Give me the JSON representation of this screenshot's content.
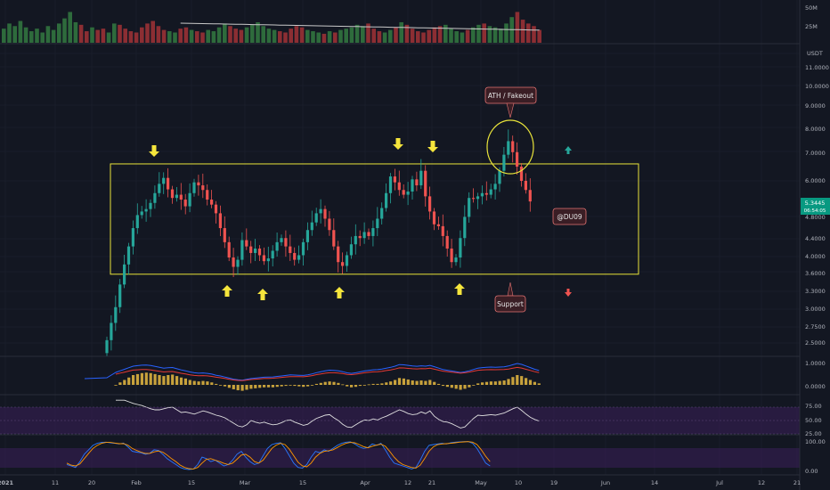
{
  "colors": {
    "background": "#131722",
    "grid": "#1e2230",
    "up": "#26a69a",
    "down": "#ef5350",
    "box": "#e8e33a",
    "arrow": "#f5e53c",
    "rsi_band": "#3a1f5a",
    "macd_line": "#2962ff",
    "signal_line": "#e53935",
    "hist": "#c8a23c",
    "note_bg": "#3a1e25",
    "note_border": "#e57373",
    "price_badge": "#089981"
  },
  "price_axis": {
    "unit": "USDT",
    "ticks": [
      "11.0000",
      "10.0000",
      "9.0000",
      "8.0000",
      "7.0000",
      "6.0000",
      "4.8000",
      "4.4000",
      "4.0000",
      "3.6000",
      "3.3000",
      "3.0000",
      "2.7500",
      "2.5000"
    ],
    "current_price": "5.3445",
    "countdown": "06:54:05"
  },
  "volume_axis": {
    "ticks": [
      "50M",
      "25M"
    ]
  },
  "macd_axis": {
    "ticks": [
      "1.0000",
      "0.0000"
    ]
  },
  "rsi_axis": {
    "ticks": [
      "75.00",
      "50.00",
      "25.00"
    ]
  },
  "stoch_axis": {
    "ticks": [
      "100.00",
      "0.00"
    ]
  },
  "time_axis": {
    "labels": [
      "2021",
      "11",
      "20",
      "Feb",
      "15",
      "Mar",
      "15",
      "Apr",
      "12",
      "21",
      "May",
      "10",
      "19",
      "Jun",
      "14",
      "Jul",
      "12",
      "21"
    ]
  },
  "annotations": {
    "ath": "ATH / Fakeout",
    "support": "Support",
    "author": "@DU09"
  },
  "chart_data": {
    "type": "candlestick",
    "interval": "1D",
    "y_scale": "log",
    "ylim": [
      2.3,
      11.5
    ],
    "range_box": {
      "low": 3.55,
      "high": 6.6
    },
    "up_arrows": [
      "Mar 6",
      "Mar 15",
      "Mar 27",
      "May 1"
    ],
    "down_arrows": [
      "Feb 5",
      "Apr 10",
      "Apr 17"
    ],
    "close": [
      2.45,
      2.7,
      2.95,
      3.35,
      3.75,
      4.15,
      4.6,
      4.95,
      5.05,
      5.12,
      5.3,
      5.6,
      5.9,
      6.1,
      5.72,
      5.45,
      5.55,
      5.4,
      5.2,
      5.6,
      5.95,
      5.85,
      5.7,
      5.4,
      5.25,
      5.0,
      4.6,
      4.25,
      3.9,
      3.7,
      3.85,
      4.3,
      4.15,
      4.0,
      4.1,
      3.95,
      3.82,
      3.88,
      4.05,
      4.25,
      4.35,
      4.15,
      4.0,
      3.85,
      3.95,
      4.25,
      4.55,
      4.75,
      5.0,
      5.12,
      4.85,
      4.55,
      4.15,
      3.8,
      3.72,
      3.95,
      4.2,
      4.4,
      4.35,
      4.5,
      4.4,
      4.6,
      4.85,
      5.15,
      5.6,
      6.15,
      5.95,
      5.7,
      5.55,
      5.65,
      6.05,
      5.85,
      6.35,
      5.5,
      5.05,
      4.7,
      4.65,
      4.4,
      4.1,
      3.8,
      3.9,
      4.35,
      4.9,
      5.45,
      5.42,
      5.5,
      5.6,
      5.55,
      5.72,
      5.9,
      6.35,
      6.95,
      7.5,
      7.05,
      6.5,
      6.0,
      5.7,
      5.3445
    ],
    "macd_hist": [
      0.0,
      0.05,
      0.1,
      0.15,
      0.2,
      0.22,
      0.24,
      0.25,
      0.24,
      0.22,
      0.2,
      0.18,
      0.2,
      0.21,
      0.18,
      0.15,
      0.13,
      0.1,
      0.08,
      0.07,
      0.08,
      0.07,
      0.05,
      0.02,
      0.0,
      -0.03,
      -0.06,
      -0.09,
      -0.11,
      -0.12,
      -0.1,
      -0.08,
      -0.07,
      -0.06,
      -0.05,
      -0.05,
      -0.05,
      -0.04,
      -0.03,
      -0.02,
      -0.01,
      -0.02,
      -0.03,
      -0.04,
      -0.03,
      -0.01,
      0.02,
      0.04,
      0.06,
      0.07,
      0.06,
      0.04,
      0.01,
      -0.03,
      -0.05,
      -0.04,
      -0.02,
      0.0,
      0.01,
      0.02,
      0.02,
      0.03,
      0.05,
      0.07,
      0.1,
      0.14,
      0.13,
      0.11,
      0.09,
      0.08,
      0.09,
      0.08,
      0.1,
      0.06,
      0.02,
      -0.02,
      -0.04,
      -0.06,
      -0.08,
      -0.1,
      -0.08,
      -0.05,
      -0.01,
      0.03,
      0.05,
      0.06,
      0.07,
      0.07,
      0.08,
      0.09,
      0.12,
      0.16,
      0.2,
      0.18,
      0.14,
      0.1,
      0.06,
      0.03
    ],
    "rsi": [
      88,
      88,
      88,
      85,
      82,
      80,
      78,
      75,
      72,
      70,
      70,
      72,
      74,
      75,
      70,
      65,
      66,
      64,
      62,
      65,
      68,
      66,
      63,
      60,
      58,
      55,
      50,
      45,
      40,
      38,
      42,
      50,
      47,
      45,
      47,
      44,
      42,
      43,
      46,
      50,
      51,
      47,
      44,
      41,
      43,
      49,
      54,
      57,
      60,
      61,
      55,
      50,
      43,
      38,
      37,
      42,
      47,
      51,
      50,
      53,
      51,
      55,
      58,
      62,
      66,
      70,
      67,
      63,
      61,
      62,
      66,
      63,
      68,
      58,
      52,
      48,
      47,
      44,
      40,
      36,
      38,
      46,
      54,
      60,
      59,
      60,
      61,
      60,
      62,
      64,
      68,
      72,
      75,
      69,
      62,
      56,
      52,
      49
    ],
    "stoch_k": [
      20,
      15,
      10,
      30,
      55,
      70,
      85,
      92,
      95,
      96,
      94,
      92,
      90,
      93,
      80,
      65,
      62,
      60,
      55,
      58,
      70,
      68,
      55,
      40,
      30,
      20,
      10,
      5,
      3,
      5,
      20,
      45,
      40,
      30,
      35,
      25,
      15,
      20,
      35,
      55,
      65,
      45,
      30,
      20,
      25,
      50,
      75,
      88,
      92,
      94,
      75,
      50,
      25,
      10,
      8,
      20,
      45,
      65,
      60,
      70,
      65,
      75,
      85,
      92,
      96,
      97,
      90,
      80,
      75,
      78,
      90,
      85,
      92,
      70,
      45,
      25,
      20,
      15,
      10,
      5,
      10,
      35,
      65,
      85,
      88,
      90,
      92,
      90,
      94,
      96,
      97,
      98,
      98,
      92,
      75,
      50,
      25,
      15
    ],
    "stoch_d": [
      25,
      18,
      15,
      22,
      40,
      58,
      75,
      85,
      92,
      95,
      95,
      93,
      91,
      91,
      86,
      75,
      68,
      62,
      58,
      58,
      63,
      66,
      62,
      52,
      40,
      30,
      18,
      10,
      6,
      5,
      10,
      25,
      38,
      40,
      35,
      30,
      24,
      20,
      25,
      38,
      52,
      55,
      45,
      30,
      25,
      35,
      55,
      75,
      86,
      92,
      88,
      72,
      50,
      28,
      15,
      12,
      25,
      45,
      58,
      65,
      67,
      70,
      78,
      86,
      92,
      95,
      94,
      88,
      81,
      77,
      82,
      86,
      89,
      82,
      65,
      45,
      30,
      20,
      15,
      10,
      8,
      18,
      40,
      65,
      80,
      88,
      90,
      91,
      92,
      94,
      96,
      97,
      98,
      96,
      88,
      70,
      48,
      30
    ],
    "volume_m": [
      22,
      30,
      26,
      34,
      24,
      18,
      22,
      16,
      26,
      20,
      30,
      38,
      48,
      32,
      28,
      18,
      24,
      20,
      22,
      16,
      30,
      28,
      22,
      18,
      16,
      24,
      30,
      34,
      26,
      20,
      18,
      16,
      22,
      24,
      20,
      18,
      16,
      20,
      18,
      24,
      30,
      26,
      22,
      20,
      24,
      28,
      32,
      26,
      22,
      20,
      18,
      16,
      22,
      26,
      24,
      20,
      18,
      16,
      14,
      18,
      16,
      20,
      22,
      24,
      28,
      26,
      30,
      22,
      18,
      16,
      20,
      24,
      32,
      28,
      22,
      18,
      16,
      20,
      24,
      26,
      28,
      22,
      18,
      16,
      20,
      24,
      28,
      30,
      26,
      24,
      22,
      30,
      40,
      48,
      36,
      30,
      26,
      20
    ]
  }
}
